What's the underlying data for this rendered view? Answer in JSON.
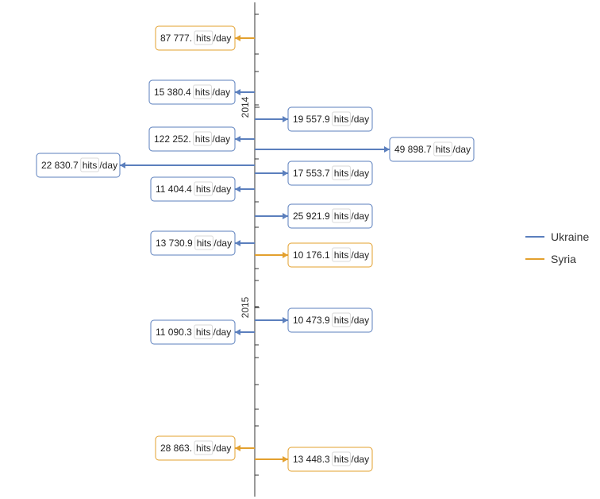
{
  "chart_data": {
    "type": "timeline",
    "unit": "hits/day",
    "unit_word": "hits",
    "unit_suffix": "/day",
    "year_ticks": [
      "2014",
      "2015"
    ],
    "series": [
      {
        "name": "Ukraine",
        "color": "#5b7fbd"
      },
      {
        "name": "Syria",
        "color": "#e3a02e"
      }
    ],
    "events": [
      {
        "series": "Syria",
        "value": "87 777.",
        "side": "left"
      },
      {
        "series": "Ukraine",
        "value": "15 380.4",
        "side": "left"
      },
      {
        "series": "Ukraine",
        "value": "19 557.9",
        "side": "right"
      },
      {
        "series": "Ukraine",
        "value": "122 252.",
        "side": "left"
      },
      {
        "series": "Ukraine",
        "value": "49 898.7",
        "side": "right"
      },
      {
        "series": "Ukraine",
        "value": "22 830.7",
        "side": "left"
      },
      {
        "series": "Ukraine",
        "value": "17 553.7",
        "side": "right"
      },
      {
        "series": "Ukraine",
        "value": "11 404.4",
        "side": "left"
      },
      {
        "series": "Ukraine",
        "value": "25 921.9",
        "side": "right"
      },
      {
        "series": "Ukraine",
        "value": "13 730.9",
        "side": "left"
      },
      {
        "series": "Syria",
        "value": "10 176.1",
        "side": "right"
      },
      {
        "series": "Ukraine",
        "value": "10 473.9",
        "side": "right"
      },
      {
        "series": "Ukraine",
        "value": "11 090.3",
        "side": "left"
      },
      {
        "series": "Syria",
        "value": "28 863.",
        "side": "left"
      },
      {
        "series": "Syria",
        "value": "13 448.3",
        "side": "right"
      }
    ]
  }
}
